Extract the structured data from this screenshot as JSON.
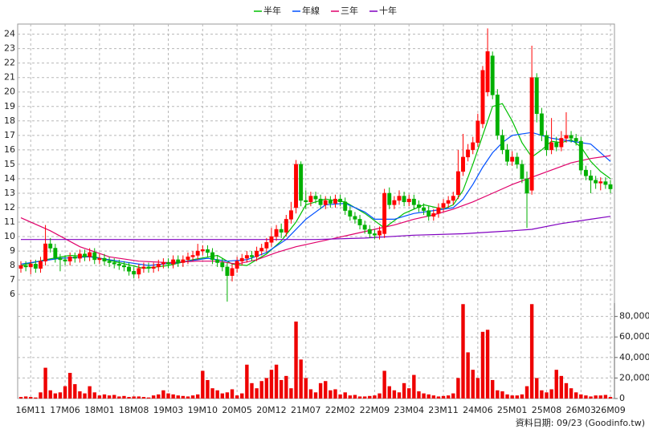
{
  "chart_data": {
    "type": "candlestick",
    "categories": [
      null,
      null,
      "16M11",
      null,
      null,
      null,
      null,
      null,
      null,
      "17M06",
      null,
      null,
      null,
      null,
      null,
      null,
      "18M01",
      null,
      null,
      null,
      null,
      null,
      null,
      "18M08",
      null,
      null,
      null,
      null,
      null,
      null,
      "19M03",
      null,
      null,
      null,
      null,
      null,
      null,
      "19M10",
      null,
      null,
      null,
      null,
      null,
      null,
      "20M05",
      null,
      null,
      null,
      null,
      null,
      null,
      "20M12",
      null,
      null,
      null,
      null,
      null,
      null,
      "21M07",
      null,
      null,
      null,
      null,
      null,
      null,
      "22M02",
      null,
      null,
      null,
      null,
      null,
      null,
      "22M09",
      null,
      null,
      null,
      null,
      null,
      null,
      "23M04",
      null,
      null,
      null,
      null,
      null,
      null,
      "23M11",
      null,
      null,
      null,
      null,
      null,
      null,
      "24M06",
      null,
      null,
      null,
      null,
      null,
      null,
      "25M01",
      null,
      null,
      null,
      null,
      null,
      null,
      "25M08",
      null,
      null,
      null,
      null,
      null,
      null,
      "26M03",
      null,
      null,
      null,
      null,
      null,
      "26M09"
    ],
    "candles": {
      "open": [
        7.8,
        8.0,
        7.9,
        8.1,
        7.8,
        8.3,
        9.5,
        9.2,
        8.5,
        8.4,
        8.3,
        8.6,
        8.5,
        8.8,
        8.6,
        8.9,
        8.4,
        8.5,
        8.3,
        8.2,
        8.1,
        8.0,
        7.9,
        7.6,
        7.4,
        7.8,
        7.9,
        7.8,
        7.9,
        8.1,
        8.2,
        8.1,
        8.4,
        8.2,
        8.4,
        8.6,
        8.7,
        9.0,
        9.1,
        8.9,
        8.4,
        8.2,
        7.9,
        7.3,
        7.8,
        8.3,
        8.5,
        8.7,
        8.6,
        9.0,
        9.2,
        9.6,
        10.0,
        10.5,
        10.3,
        11.2,
        12.0,
        15.0,
        12.5,
        12.4,
        12.8,
        12.6,
        12.2,
        12.5,
        12.3,
        12.6,
        12.4,
        11.8,
        11.4,
        11.2,
        10.8,
        10.5,
        10.2,
        10.1,
        10.2,
        13.0,
        12.2,
        12.5,
        12.8,
        12.4,
        12.6,
        12.2,
        12.0,
        11.8,
        11.4,
        11.6,
        12.0,
        12.3,
        12.5,
        12.9,
        14.5,
        15.5,
        16.0,
        16.5,
        17.8,
        20.0,
        22.5,
        19.8,
        17.0,
        16.0,
        15.2,
        15.5,
        15.0,
        14.0,
        13.2,
        21.0,
        18.5,
        17.0,
        16.0,
        16.5,
        16.2,
        16.8,
        17.0,
        16.8,
        16.6,
        14.6,
        14.2,
        13.9,
        13.7,
        13.8,
        13.6
      ],
      "high": [
        8.3,
        8.3,
        8.4,
        8.4,
        8.6,
        10.8,
        9.9,
        9.5,
        8.8,
        8.7,
        8.9,
        8.9,
        9.1,
        9.1,
        9.2,
        9.2,
        8.8,
        8.8,
        8.6,
        8.5,
        8.4,
        8.3,
        8.2,
        7.9,
        8.1,
        8.2,
        8.2,
        8.2,
        8.4,
        8.5,
        8.5,
        8.7,
        8.7,
        8.7,
        8.9,
        9.0,
        9.5,
        9.4,
        9.4,
        9.2,
        8.7,
        8.5,
        8.2,
        8.1,
        8.6,
        8.8,
        9.0,
        9.0,
        9.3,
        9.5,
        9.9,
        10.6,
        10.8,
        10.9,
        11.5,
        12.4,
        15.3,
        15.2,
        13.2,
        13.1,
        13.1,
        12.9,
        12.8,
        12.8,
        12.9,
        12.9,
        12.7,
        12.1,
        11.7,
        11.5,
        11.1,
        10.8,
        10.5,
        10.7,
        13.3,
        13.4,
        12.8,
        13.2,
        13.1,
        12.9,
        12.9,
        12.5,
        12.3,
        12.1,
        11.9,
        12.3,
        12.6,
        12.8,
        13.1,
        16.0,
        17.1,
        16.4,
        16.9,
        18.5,
        21.8,
        24.4,
        22.8,
        20.2,
        17.4,
        16.4,
        15.9,
        15.8,
        15.3,
        14.5,
        23.2,
        21.3,
        18.9,
        17.3,
        18.2,
        16.9,
        17.3,
        18.6,
        17.3,
        17.1,
        16.9,
        14.9,
        14.6,
        14.2,
        14.1,
        14.1,
        13.9
      ],
      "low": [
        7.5,
        7.6,
        7.4,
        7.5,
        7.5,
        8.0,
        8.9,
        8.2,
        7.6,
        8.0,
        8.0,
        8.2,
        8.2,
        8.3,
        8.3,
        8.1,
        8.1,
        8.0,
        7.9,
        7.8,
        7.7,
        7.6,
        7.3,
        7.1,
        7.1,
        7.5,
        7.5,
        7.5,
        7.6,
        7.8,
        7.8,
        7.8,
        7.9,
        7.9,
        8.1,
        8.3,
        8.4,
        8.7,
        8.6,
        8.1,
        7.9,
        7.6,
        5.5,
        6.9,
        7.5,
        8.0,
        8.2,
        8.3,
        8.3,
        8.7,
        8.9,
        9.3,
        9.7,
        9.9,
        10.0,
        10.9,
        11.6,
        12.1,
        11.9,
        12.1,
        12.3,
        11.9,
        11.9,
        12.0,
        12.0,
        12.1,
        11.5,
        11.1,
        10.9,
        10.5,
        10.2,
        9.9,
        9.8,
        9.8,
        9.9,
        11.9,
        11.9,
        12.2,
        12.1,
        12.1,
        11.9,
        11.7,
        11.5,
        11.1,
        11.1,
        11.3,
        11.7,
        12.0,
        12.2,
        12.6,
        14.2,
        15.2,
        15.7,
        16.2,
        17.5,
        19.7,
        19.5,
        16.7,
        15.7,
        14.9,
        14.9,
        14.7,
        13.7,
        10.6,
        12.9,
        17.9,
        16.6,
        15.6,
        15.7,
        15.9,
        15.9,
        16.5,
        16.5,
        16.3,
        14.3,
        13.9,
        13.0,
        13.3,
        13.2,
        13.3,
        13.0
      ],
      "close": [
        8.0,
        7.9,
        8.1,
        7.8,
        8.3,
        9.5,
        9.2,
        8.5,
        8.4,
        8.3,
        8.6,
        8.5,
        8.8,
        8.6,
        8.9,
        8.4,
        8.5,
        8.3,
        8.2,
        8.1,
        8.0,
        7.9,
        7.6,
        7.4,
        7.8,
        7.9,
        7.8,
        7.9,
        8.1,
        8.2,
        8.1,
        8.4,
        8.2,
        8.4,
        8.6,
        8.7,
        9.0,
        9.1,
        8.9,
        8.4,
        8.2,
        7.9,
        7.3,
        7.8,
        8.3,
        8.5,
        8.7,
        8.6,
        9.0,
        9.2,
        9.6,
        10.0,
        10.5,
        10.3,
        11.2,
        11.8,
        15.0,
        12.5,
        12.4,
        12.8,
        12.6,
        12.2,
        12.5,
        12.3,
        12.6,
        12.4,
        11.8,
        11.4,
        11.2,
        10.8,
        10.5,
        10.2,
        10.1,
        10.4,
        13.0,
        12.2,
        12.5,
        12.8,
        12.4,
        12.6,
        12.2,
        12.0,
        11.8,
        11.4,
        11.6,
        12.0,
        12.3,
        12.5,
        12.8,
        14.5,
        15.5,
        16.0,
        16.5,
        18.0,
        21.5,
        22.8,
        19.8,
        17.0,
        16.0,
        15.2,
        15.5,
        15.0,
        14.0,
        13.0,
        21.0,
        18.5,
        17.0,
        16.0,
        16.5,
        16.2,
        16.8,
        17.0,
        16.8,
        16.6,
        14.6,
        14.2,
        13.9,
        13.7,
        13.8,
        13.6,
        13.3
      ],
      "up_color": "#ff0000",
      "down_color": "#00b000"
    },
    "series": [
      {
        "name": "半年",
        "color": "#00c000",
        "x": [
          0,
          5,
          10,
          15,
          20,
          25,
          30,
          35,
          40,
          43,
          46,
          50,
          53,
          56,
          58,
          62,
          66,
          70,
          74,
          78,
          82,
          86,
          88,
          90,
          92,
          94,
          96,
          98,
          100,
          102,
          104,
          106,
          108,
          110,
          112,
          114,
          116,
          118,
          120
        ],
        "values": [
          8.0,
          8.4,
          8.7,
          8.6,
          8.2,
          7.8,
          8.0,
          8.4,
          8.7,
          8.1,
          8.0,
          8.8,
          9.7,
          11.0,
          12.2,
          12.6,
          12.4,
          11.6,
          10.6,
          11.6,
          12.2,
          11.9,
          12.2,
          13.2,
          15.0,
          17.0,
          19.0,
          19.2,
          18.0,
          16.5,
          15.5,
          16.0,
          16.6,
          16.5,
          16.7,
          16.2,
          15.2,
          14.5,
          14.0
        ]
      },
      {
        "name": "年線",
        "color": "#0050ff",
        "x": [
          0,
          8,
          14,
          20,
          26,
          32,
          38,
          42,
          46,
          50,
          54,
          58,
          62,
          66,
          70,
          72,
          76,
          80,
          84,
          88,
          90,
          92,
          94,
          96,
          98,
          100,
          104,
          108,
          112,
          116,
          120
        ],
        "values": [
          8.1,
          8.5,
          8.6,
          8.3,
          8.0,
          8.2,
          8.5,
          8.3,
          8.4,
          8.9,
          9.8,
          11.2,
          12.2,
          12.3,
          11.7,
          11.2,
          11.2,
          11.6,
          11.8,
          12.0,
          12.6,
          13.6,
          14.8,
          15.8,
          16.5,
          17.0,
          17.2,
          16.8,
          16.6,
          16.4,
          15.2
        ]
      },
      {
        "name": "三年",
        "color": "#e0006a",
        "x": [
          0,
          6,
          12,
          18,
          24,
          30,
          36,
          40,
          44,
          48,
          52,
          56,
          60,
          64,
          68,
          72,
          76,
          80,
          84,
          88,
          92,
          96,
          100,
          104,
          108,
          112,
          116,
          120
        ],
        "values": [
          11.3,
          10.4,
          9.3,
          8.6,
          8.3,
          8.2,
          8.3,
          8.3,
          8.1,
          8.4,
          8.9,
          9.3,
          9.6,
          9.9,
          10.2,
          10.5,
          10.8,
          11.2,
          11.5,
          11.9,
          12.4,
          13.0,
          13.6,
          14.1,
          14.6,
          15.1,
          15.4,
          15.6
        ]
      },
      {
        "name": "十年",
        "color": "#8000c0",
        "x": [
          0,
          20,
          40,
          60,
          70,
          80,
          90,
          100,
          104,
          110,
          116,
          120
        ],
        "values": [
          9.8,
          9.8,
          9.8,
          9.8,
          9.9,
          10.1,
          10.2,
          10.4,
          10.5,
          10.9,
          11.2,
          11.4
        ]
      }
    ],
    "ylim": [
      5.4,
      24.7
    ],
    "yticks": [
      6,
      7,
      8,
      9,
      10,
      11,
      12,
      13,
      14,
      15,
      16,
      17,
      18,
      19,
      20,
      21,
      22,
      23,
      24
    ],
    "volume": {
      "color": "#ee0000",
      "values": [
        1500,
        2000,
        1500,
        1000,
        6000,
        30000,
        8000,
        5000,
        6000,
        12000,
        25000,
        14000,
        7000,
        5000,
        12000,
        6000,
        3000,
        4000,
        3000,
        3500,
        2000,
        2500,
        1500,
        2000,
        2000,
        1500,
        1000,
        3000,
        4000,
        8000,
        5000,
        4000,
        3000,
        2500,
        2000,
        3000,
        4000,
        27000,
        18000,
        10000,
        8000,
        5000,
        6000,
        9000,
        3000,
        5000,
        33000,
        15000,
        10000,
        17000,
        20000,
        28000,
        33000,
        18000,
        22000,
        10000,
        75000,
        38000,
        20000,
        9000,
        6000,
        15000,
        17000,
        8000,
        9000,
        4000,
        6000,
        3000,
        3500,
        2000,
        2000,
        2500,
        3000,
        5000,
        27000,
        12000,
        8000,
        6000,
        15000,
        10000,
        23000,
        7000,
        5000,
        4000,
        3000,
        2000,
        2500,
        3000,
        5000,
        20000,
        92000,
        45000,
        28000,
        20000,
        65000,
        67000,
        18000,
        8000,
        7000,
        4000,
        3000,
        3000,
        4000,
        12000,
        92000,
        20000,
        8000,
        6000,
        9000,
        28000,
        22000,
        15000,
        10000,
        6000,
        4000,
        3000,
        2000,
        3000,
        3000,
        3500,
        1500
      ],
      "ylim": [
        0,
        93000
      ],
      "yticks": [
        0,
        {
          "value": 20000,
          "label": "20,000"
        },
        {
          "value": 40000,
          "label": "40,000"
        },
        {
          "value": 60000,
          "label": "60,000"
        },
        {
          "value": 80000,
          "label": "80,000"
        }
      ]
    },
    "grid": true,
    "footer": "資料日期: 09/23 (Goodinfo.tw)"
  }
}
